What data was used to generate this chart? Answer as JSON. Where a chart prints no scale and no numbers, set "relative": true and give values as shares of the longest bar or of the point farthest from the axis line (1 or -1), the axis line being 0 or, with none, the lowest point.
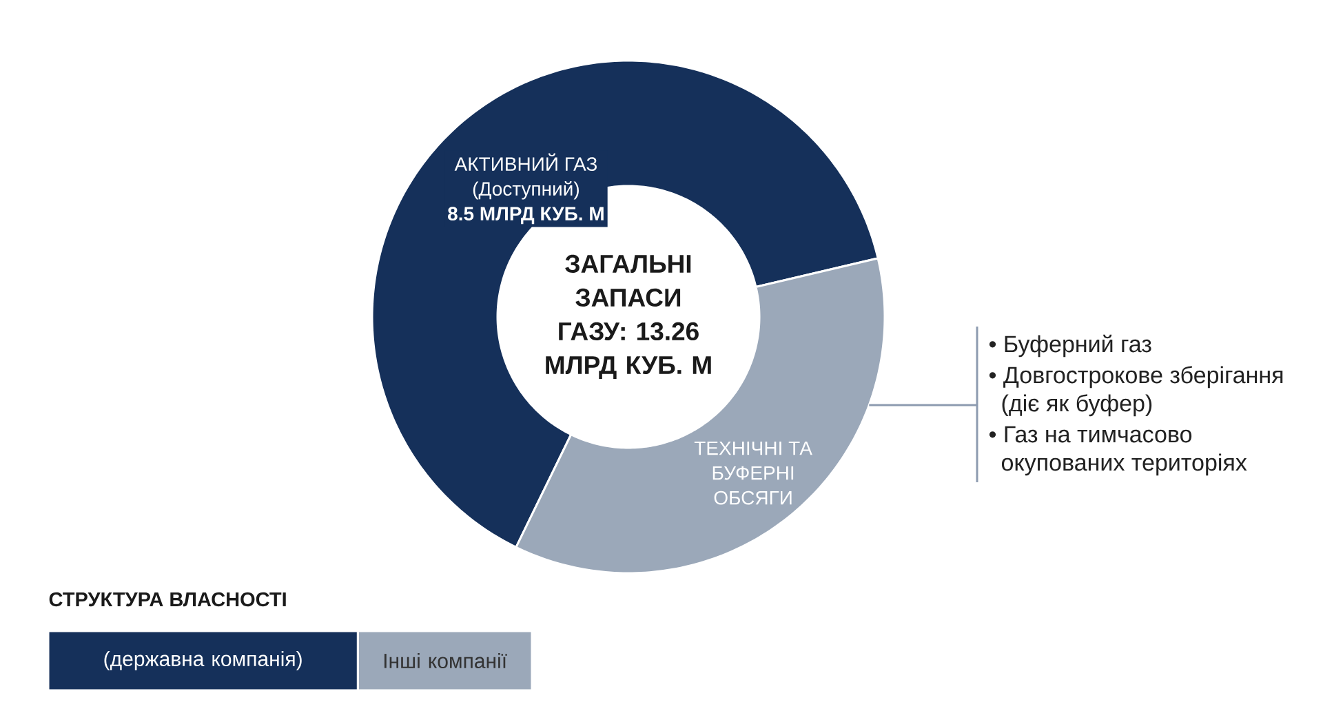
{
  "chart_data": [
    {
      "type": "donut",
      "categories": [
        "АКТИВНИЙ ГАЗ (Доступний) **8.5 МЛРД КУБ. М**",
        "ТЕХНІЧНІ ТА БУФЕРНІ ОБСЯГИ"
      ],
      "values": [
        8.5,
        4.76
      ],
      "colors": [
        "#15305a",
        "#9ba8b9"
      ],
      "annotations": [
        "ЗАГАЛЬНІ ЗАПАСИ ГАЗУ: 13.26 МЛРД КУБ. М",
        "• Буферний газ",
        "• Довгострокове зберігання (діє як буфер)",
        "• Газ на тимчасово окупованих територіях"
      ]
    },
    {
      "type": "bar",
      "title": "СТРУКТУРА ВЛАСНОСТІ",
      "orientation": "horizontal",
      "stacked": true,
      "relative": true,
      "categories": [
        null
      ],
      "series": [
        {
          "name": "(державна компанія)",
          "color": "#15305a",
          "values": [
            0.64
          ]
        },
        {
          "name": "Інші компанії",
          "color": "#9ba8b9",
          "values": [
            0.36
          ]
        }
      ]
    }
  ]
}
